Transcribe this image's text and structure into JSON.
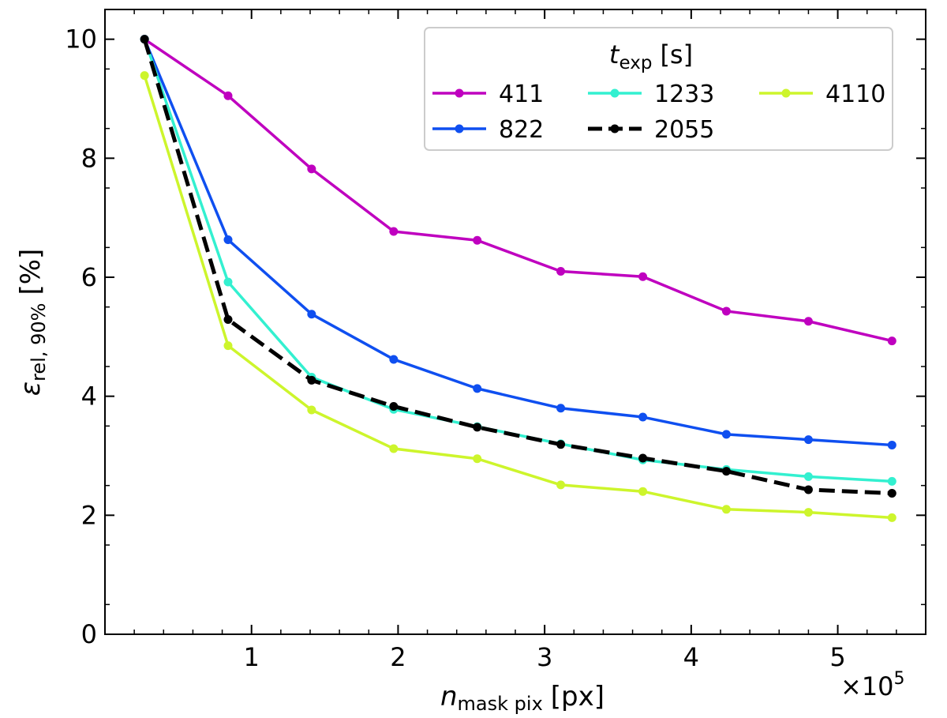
{
  "chart_data": {
    "type": "line",
    "x_multiplier_label": "×10",
    "x_multiplier_exp": "5",
    "xlabel": {
      "main": "n",
      "sub": "mask pix",
      "unit": "[px]"
    },
    "ylabel": {
      "main": "ε",
      "sub": "rel, 90%",
      "unit": "[%]"
    },
    "xlim": [
      0.0,
      5.6
    ],
    "ylim": [
      0,
      10.5
    ],
    "x_ticks": [
      1,
      2,
      3,
      4,
      5
    ],
    "y_ticks": [
      0,
      2,
      4,
      6,
      8,
      10
    ],
    "x_tick_labels": [
      "1",
      "2",
      "3",
      "4",
      "5"
    ],
    "y_tick_labels": [
      "0",
      "2",
      "4",
      "6",
      "8",
      "10"
    ],
    "grid": false,
    "legend": {
      "title_main": "t",
      "title_sub": "exp",
      "title_unit": "[s]",
      "placement": "top-right",
      "columns": 3
    },
    "x": [
      0.27,
      0.84,
      1.41,
      1.97,
      2.54,
      3.11,
      3.67,
      4.24,
      4.8,
      5.37
    ],
    "series": [
      {
        "name": "411",
        "color": "#bf00bf",
        "dashed": false,
        "values": [
          10.0,
          9.05,
          7.82,
          6.77,
          6.62,
          6.1,
          6.01,
          5.43,
          5.26,
          4.93
        ]
      },
      {
        "name": "822",
        "color": "#0f4ff0",
        "dashed": false,
        "values": [
          10.0,
          6.63,
          5.38,
          4.62,
          4.13,
          3.8,
          3.65,
          3.36,
          3.27,
          3.18
        ]
      },
      {
        "name": "1233",
        "color": "#33f0d0",
        "dashed": false,
        "values": [
          10.0,
          5.92,
          4.32,
          3.78,
          3.49,
          3.2,
          2.93,
          2.77,
          2.65,
          2.57
        ]
      },
      {
        "name": "2055",
        "color": "#000000",
        "dashed": true,
        "values": [
          10.0,
          5.29,
          4.27,
          3.83,
          3.48,
          3.19,
          2.96,
          2.74,
          2.43,
          2.37
        ]
      },
      {
        "name": "4110",
        "color": "#cdf52c",
        "dashed": false,
        "values": [
          9.39,
          4.85,
          3.77,
          3.12,
          2.95,
          2.51,
          2.4,
          2.1,
          2.05,
          1.96
        ]
      }
    ]
  }
}
